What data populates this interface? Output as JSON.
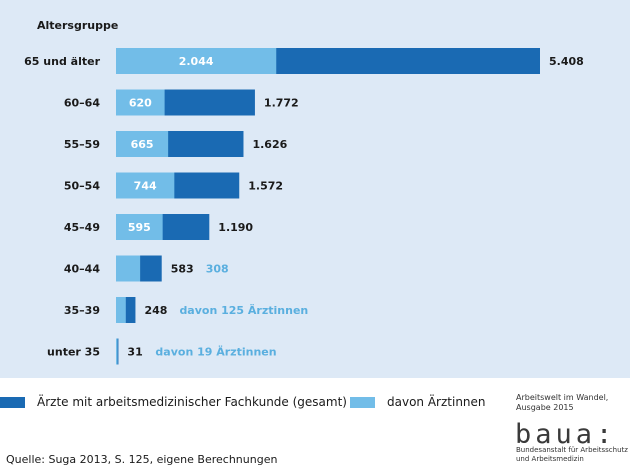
{
  "chart_data": {
    "type": "bar",
    "orientation": "horizontal",
    "stacked": "overlay",
    "category_axis_title": "Altersgruppe",
    "categories": [
      "65 und älter",
      "60–64",
      "55–59",
      "50–54",
      "45–49",
      "40–44",
      "35–39",
      "unter 35"
    ],
    "series": [
      {
        "name": "Ärzte mit arbeitsmedizinischer Fachkunde (gesamt)",
        "color": "#1a6ab3",
        "values": [
          5408,
          1772,
          1626,
          1572,
          1190,
          583,
          248,
          31
        ],
        "labels": [
          "5.408",
          "1.772",
          "1.626",
          "1.572",
          "1.190",
          "583",
          "248",
          "31"
        ]
      },
      {
        "name": "davon Ärztinnen",
        "color": "#72bde8",
        "values": [
          2044,
          620,
          665,
          744,
          595,
          308,
          125,
          19
        ],
        "labels": [
          "2.044",
          "620",
          "665",
          "744",
          "595",
          "308",
          "davon 125 Ärztinnen",
          "davon 19 Ärztinnen"
        ]
      }
    ],
    "legend_position": "bottom",
    "grid": false
  },
  "legend": {
    "items": [
      {
        "label": "Ärzte mit arbeitsmedizinischer Fachkunde (gesamt)",
        "color": "#1a6ab3"
      },
      {
        "label": "davon Ärztinnen",
        "color": "#72bde8"
      }
    ]
  },
  "publication": {
    "line1": "Arbeitswelt im Wandel,",
    "line2": "Ausgabe 2015",
    "logo_text": "baua:",
    "institution_line1": "Bundesanstalt für Arbeitsschutz",
    "institution_line2": "und Arbeitsmedizin"
  },
  "source": "Quelle: Suga 2013, S. 125, eigene Berechnungen",
  "colors": {
    "background_panel": "#dde9f6",
    "total": "#1a6ab3",
    "female": "#72bde8",
    "female_label": "#5aafdf"
  }
}
